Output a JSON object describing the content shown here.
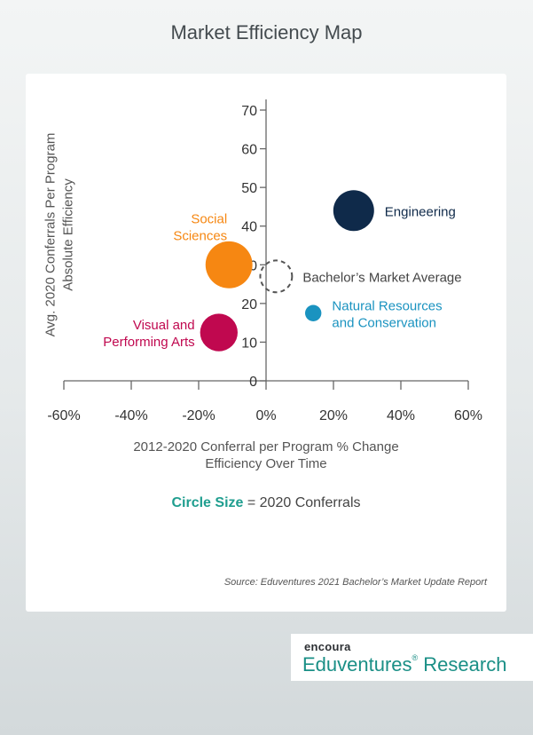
{
  "title": "Market Efficiency Map",
  "ylabel_line1": "Avg. 2020 Conferrals Per Program",
  "ylabel_line2": "Absolute Efficiency",
  "xlabel_line1": "2012-2020 Conferral per Program % Change",
  "xlabel_line2": "Efficiency Over Time",
  "size_legend": {
    "highlight": "Circle Size",
    "rest": " = 2020 Conferrals"
  },
  "source": "Source: Eduventures 2021 Bachelor’s Market Update Report",
  "logo": {
    "brand": "encoura",
    "name": "Eduventures",
    "reg": "®",
    "suffix": " Research"
  },
  "chart_data": {
    "type": "scatter",
    "title": "Market Efficiency Map",
    "xlabel": "2012-2020 Conferral per Program % Change",
    "ylabel": "Avg. 2020 Conferrals Per Program",
    "xlim": [
      -60,
      60
    ],
    "ylim": [
      0,
      70
    ],
    "x_ticks": [
      -60,
      -40,
      -20,
      0,
      20,
      40,
      60
    ],
    "x_tick_labels": [
      "-60%",
      "-40%",
      "-20%",
      "0%",
      "20%",
      "40%",
      "60%"
    ],
    "y_ticks": [
      0,
      10,
      20,
      30,
      40,
      50,
      60,
      70
    ],
    "y_tick_labels": [
      "0",
      "10",
      "20",
      "30",
      "40",
      "50",
      "60",
      "70"
    ],
    "grid": false,
    "points": [
      {
        "label": [
          "Engineering"
        ],
        "x": 26,
        "y": 44,
        "size": 1.0,
        "color": "#0f2a4a",
        "label_side": "right"
      },
      {
        "label": [
          "Social",
          "Sciences"
        ],
        "x": -11,
        "y": 30,
        "size": 1.15,
        "color": "#f68712",
        "label_side": "left"
      },
      {
        "label": [
          "Bachelor’s Market Average"
        ],
        "x": 3,
        "y": 27,
        "size": 0.78,
        "color": "#555555",
        "dashed": true,
        "label_side": "right"
      },
      {
        "label": [
          "Natural Resources",
          "and Conservation"
        ],
        "x": 14,
        "y": 17.5,
        "size": 0.4,
        "color": "#1a93c0",
        "label_side": "right"
      },
      {
        "label": [
          "Visual and",
          "Performing Arts"
        ],
        "x": -14,
        "y": 12.5,
        "size": 0.92,
        "color": "#c0084f",
        "label_side": "left"
      }
    ]
  }
}
